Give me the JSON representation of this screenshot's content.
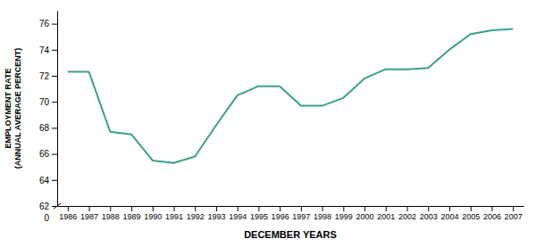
{
  "chart_data": {
    "type": "line",
    "x": [
      1986,
      1987,
      1988,
      1989,
      1990,
      1991,
      1992,
      1993,
      1994,
      1995,
      1996,
      1997,
      1998,
      1999,
      2000,
      2001,
      2002,
      2003,
      2004,
      2005,
      2006,
      2007
    ],
    "values": [
      72.3,
      72.3,
      67.7,
      67.5,
      65.5,
      65.3,
      65.8,
      68.2,
      70.5,
      71.2,
      71.2,
      69.7,
      69.7,
      70.3,
      71.8,
      72.5,
      72.5,
      72.6,
      74.0,
      75.2,
      75.5,
      75.6
    ],
    "color": "#3d9e8c",
    "x_label": "DECEMBER YEARS",
    "y_label": "EMPLOYMENT RATE\n(ANNUAL AVERAGE PERCENT)",
    "xlim": [
      1985.5,
      2007.5
    ],
    "xticks": [
      1986,
      1987,
      1988,
      1989,
      1990,
      1991,
      1992,
      1993,
      1994,
      1995,
      1996,
      1997,
      1998,
      1999,
      2000,
      2001,
      2002,
      2003,
      2004,
      2005,
      2006,
      2007
    ],
    "ylim": [
      62,
      77
    ],
    "yticks": [
      62,
      64,
      66,
      68,
      70,
      72,
      74,
      76
    ],
    "annotations": [
      {
        "text": "0"
      }
    ],
    "grid": false
  }
}
